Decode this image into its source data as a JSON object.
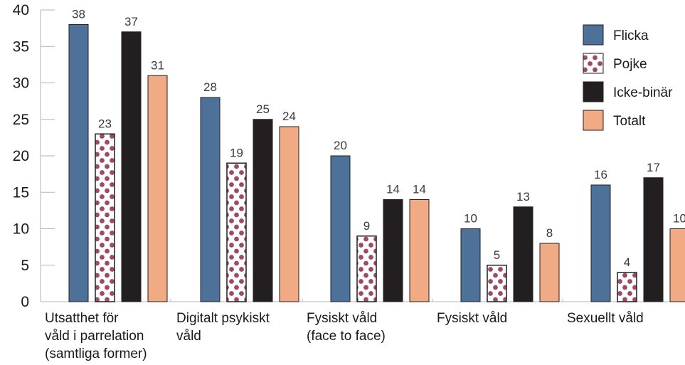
{
  "chart_data": {
    "type": "bar",
    "categories": [
      [
        "Utsatthet för",
        "våld i parrelation",
        "(samtliga former)"
      ],
      [
        "Digitalt psykiskt",
        "våld"
      ],
      [
        "Fysiskt våld",
        "(face to face)"
      ],
      [
        "Fysiskt våld"
      ],
      [
        "Sexuellt våld"
      ]
    ],
    "series": [
      {
        "name": "Flicka",
        "values": [
          38,
          28,
          20,
          10,
          16
        ],
        "color": "#4d7199",
        "pattern": "solid"
      },
      {
        "name": "Pojke",
        "values": [
          23,
          19,
          9,
          5,
          4
        ],
        "color": "#9c4a68",
        "pattern": "dots"
      },
      {
        "name": "Icke-binär",
        "values": [
          37,
          25,
          14,
          13,
          17
        ],
        "color": "#231f20",
        "pattern": "solid"
      },
      {
        "name": "Totalt",
        "values": [
          31,
          24,
          14,
          8,
          10
        ],
        "color": "#f0aa84",
        "pattern": "solid"
      }
    ],
    "ylim": [
      0,
      40
    ],
    "yticks": [
      0,
      5,
      10,
      15,
      20,
      25,
      30,
      35,
      40
    ],
    "legend": "top-right",
    "grid": false
  }
}
